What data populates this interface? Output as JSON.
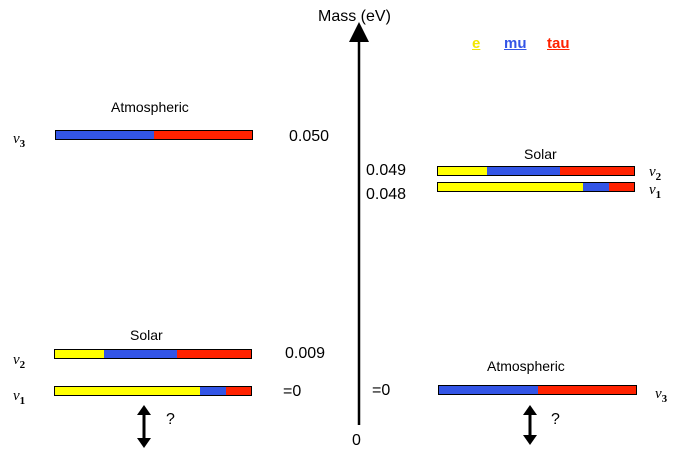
{
  "axis": {
    "title": "Mass (eV)",
    "zero": "0"
  },
  "legend": [
    {
      "label": "e",
      "color": "#ffff00"
    },
    {
      "label": "mu",
      "color": "#3355e6"
    },
    {
      "label": "tau",
      "color": "#ff2200"
    }
  ],
  "left": {
    "atmospheric_label": "Atmospheric",
    "solar_label": "Solar",
    "states": [
      {
        "nu": "v",
        "sub": "3",
        "mass": "0.050",
        "fractions": [
          0.0,
          0.5,
          0.5
        ]
      },
      {
        "nu": "v",
        "sub": "2",
        "mass": "0.009",
        "fractions": [
          0.25,
          0.37,
          0.38
        ]
      },
      {
        "nu": "v",
        "sub": "1",
        "mass": "=0",
        "fractions": [
          0.74,
          0.13,
          0.13
        ]
      }
    ],
    "question": "?"
  },
  "right": {
    "atmospheric_label": "Atmospheric",
    "solar_label": "Solar",
    "states": [
      {
        "nu": "v",
        "sub": "2",
        "mass": "0.049",
        "fractions": [
          0.25,
          0.37,
          0.38
        ]
      },
      {
        "nu": "v",
        "sub": "1",
        "mass": "0.048",
        "fractions": [
          0.74,
          0.13,
          0.13
        ]
      },
      {
        "nu": "v",
        "sub": "3",
        "mass": "=0",
        "fractions": [
          0.0,
          0.5,
          0.5
        ]
      }
    ],
    "question": "?"
  }
}
